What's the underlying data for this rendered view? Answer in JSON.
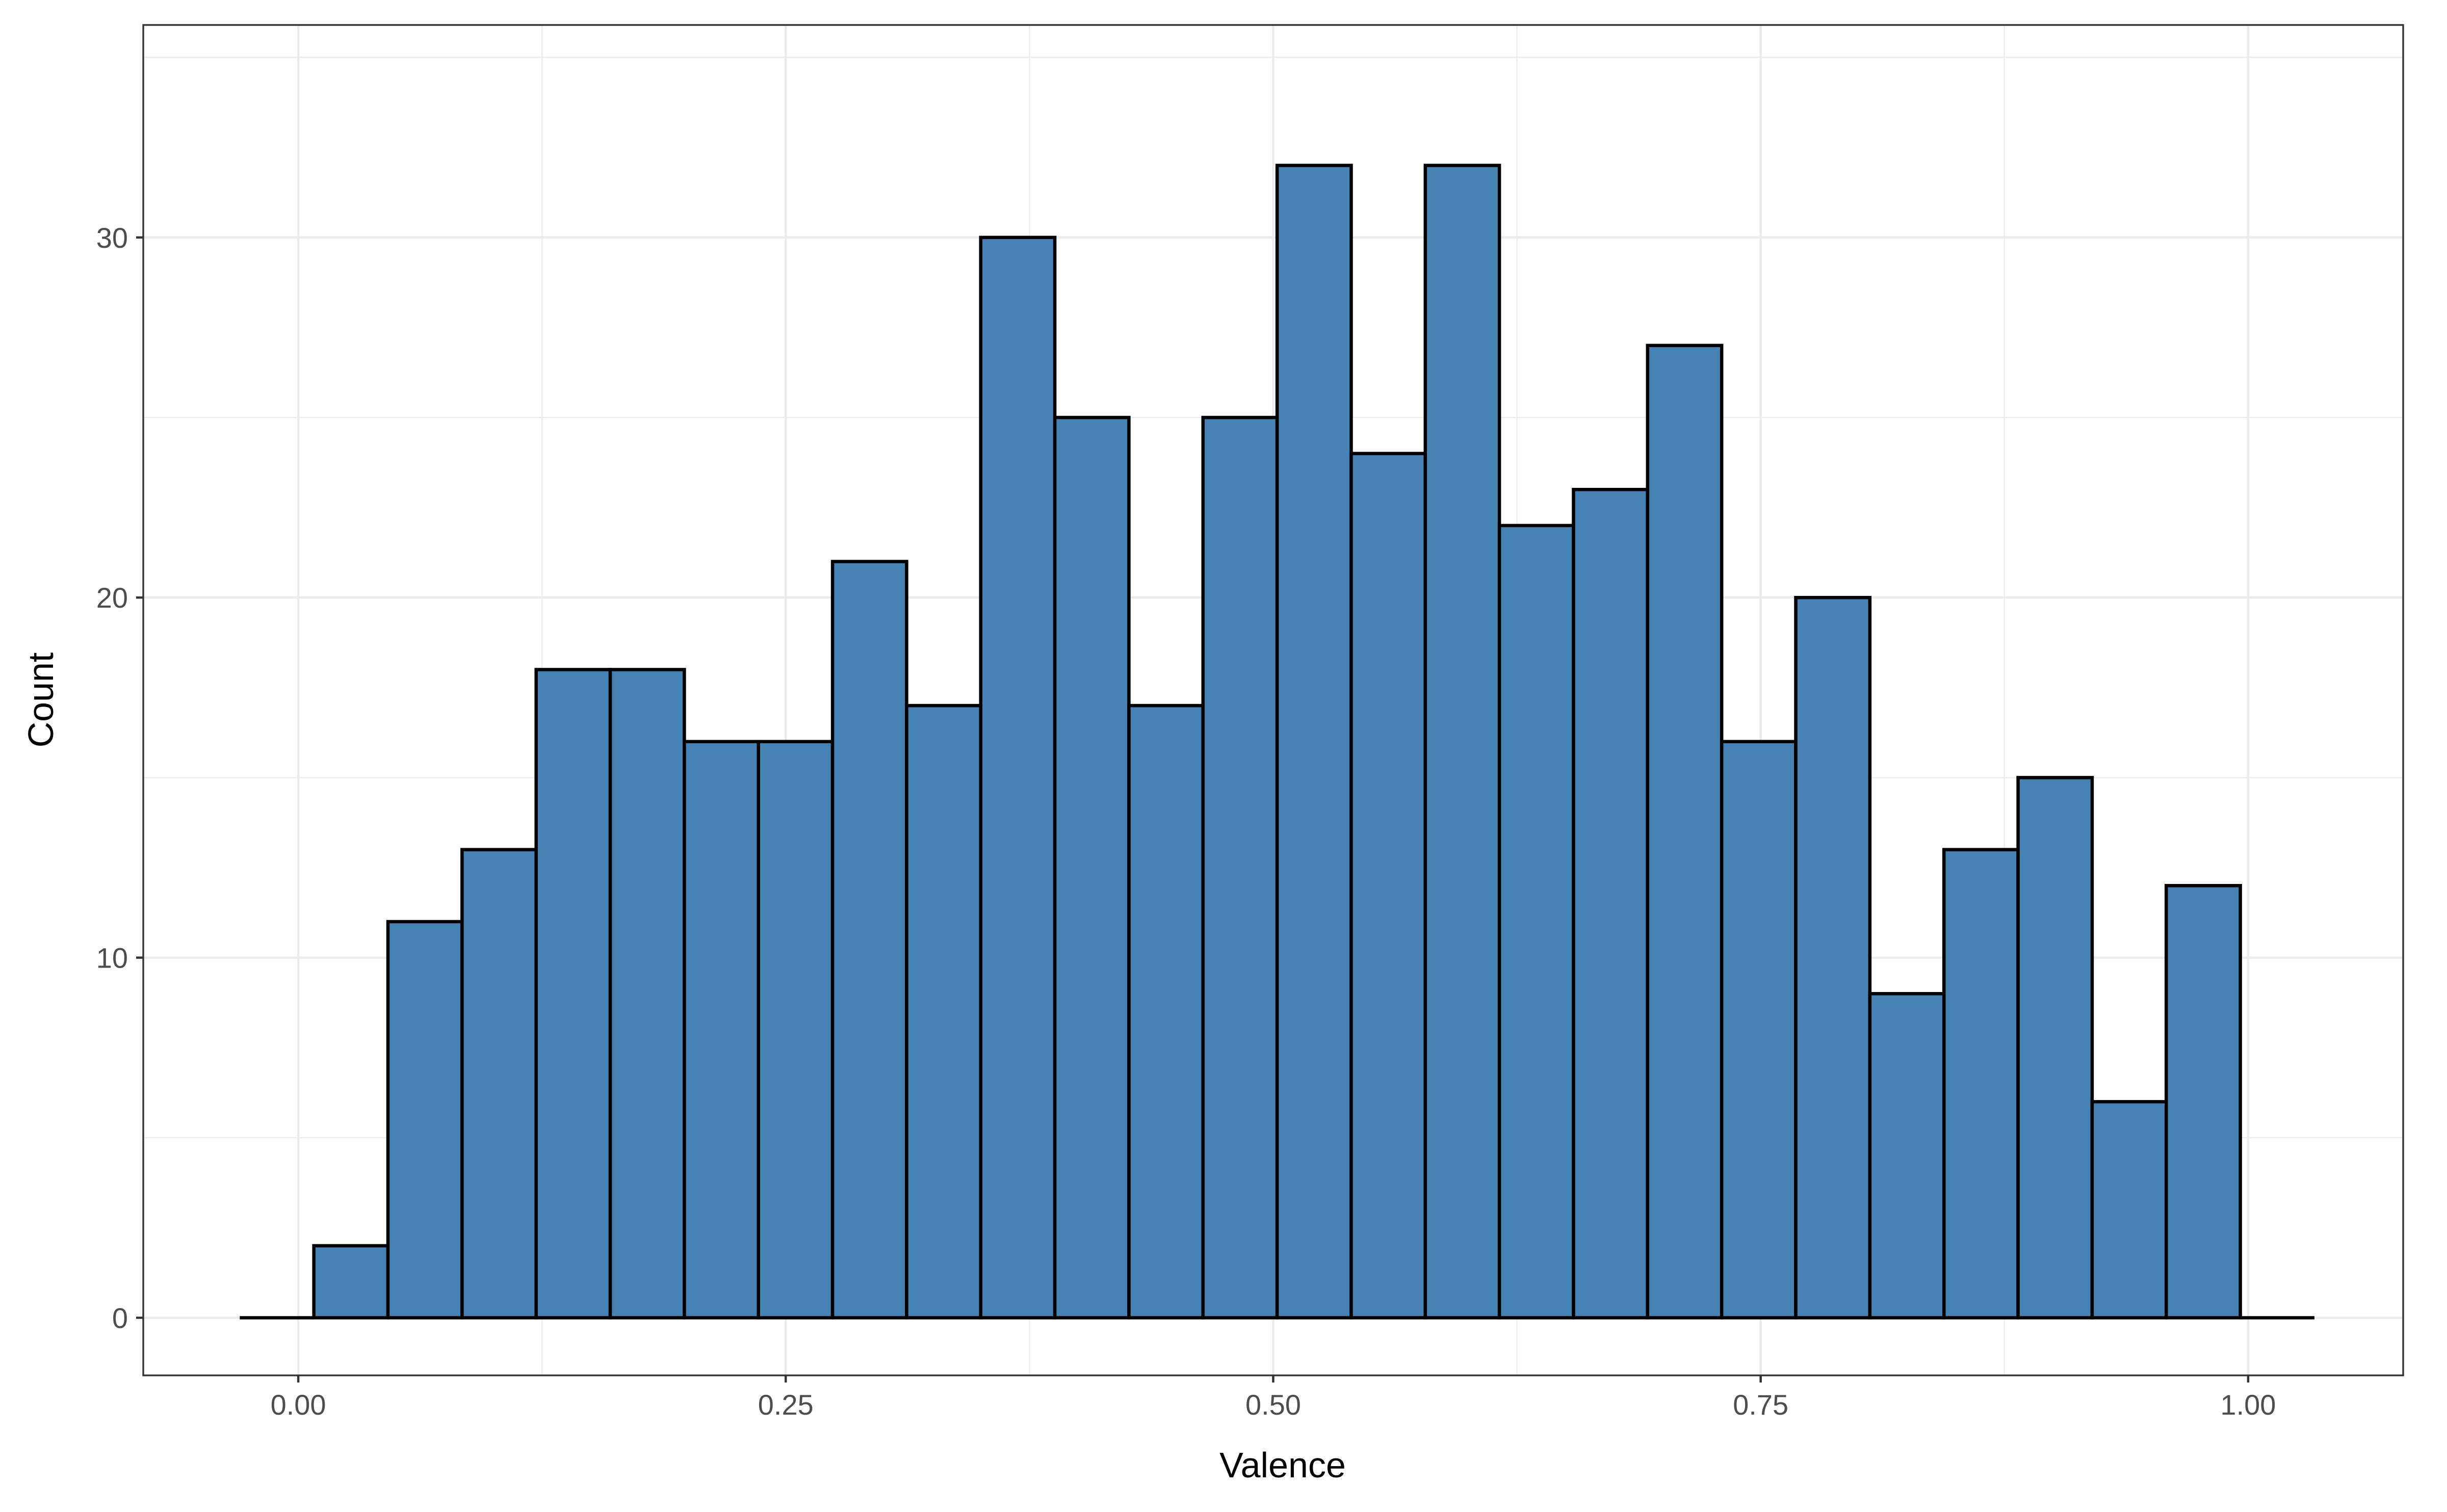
{
  "chart_data": {
    "type": "bar",
    "subtype": "histogram",
    "title": "",
    "xlabel": "Valence",
    "ylabel": "Count",
    "xlim": [
      -0.0795,
      1.0795
    ],
    "ylim": [
      -1.6,
      35.9
    ],
    "x_ticks": [
      0.0,
      0.25,
      0.5,
      0.75,
      1.0
    ],
    "x_tick_labels": [
      "0.00",
      "0.25",
      "0.50",
      "0.75",
      "1.00"
    ],
    "y_ticks": [
      0,
      10,
      20,
      30
    ],
    "y_tick_labels": [
      "0",
      "10",
      "20",
      "30"
    ],
    "x_minor_ticks": [
      0.125,
      0.375,
      0.625,
      0.875
    ],
    "y_minor_ticks": [
      5,
      15,
      25,
      35
    ],
    "bin_width": 0.038,
    "first_bin_center": -0.011,
    "values": [
      0,
      2,
      11,
      13,
      18,
      18,
      16,
      16,
      21,
      17,
      30,
      25,
      17,
      25,
      32,
      24,
      32,
      22,
      23,
      27,
      16,
      20,
      9,
      13,
      15,
      6,
      12,
      0
    ],
    "bar_fill": "#4682b4",
    "bar_outline": "#000000",
    "grid": true,
    "theme": "bw",
    "legend": "none"
  }
}
